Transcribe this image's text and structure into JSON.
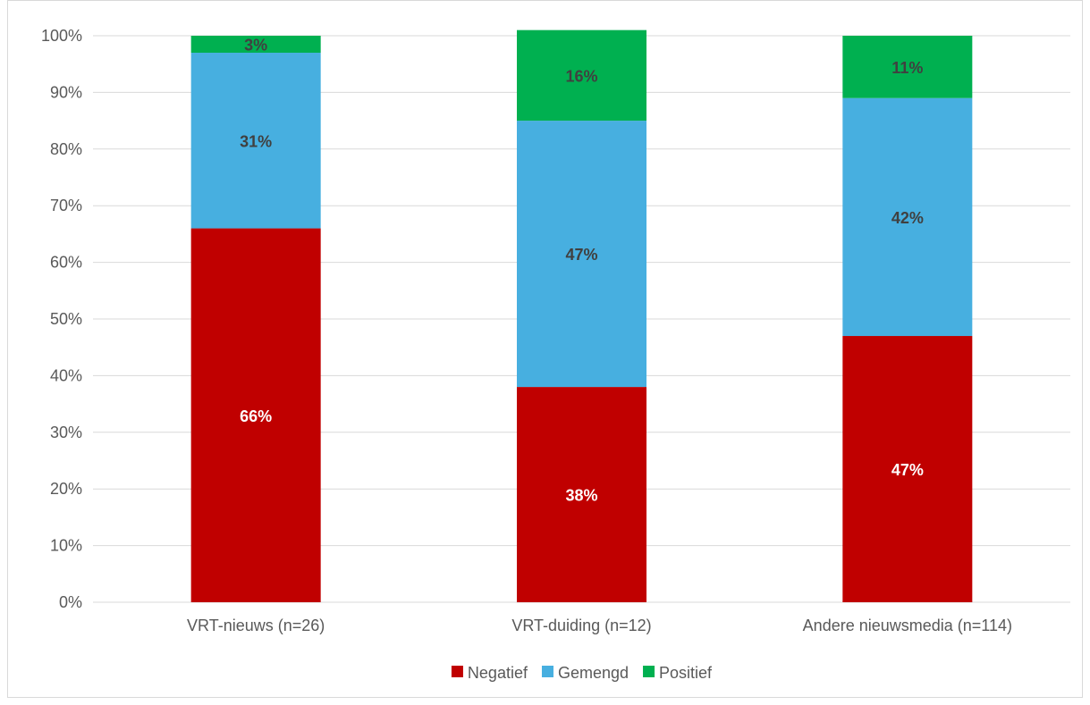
{
  "chart_data": {
    "type": "bar",
    "stacked": true,
    "title": "",
    "xlabel": "",
    "ylabel": "",
    "ylim": [
      0,
      100
    ],
    "ytick_format": "percent",
    "yticks": [
      "0%",
      "10%",
      "20%",
      "30%",
      "40%",
      "50%",
      "60%",
      "70%",
      "80%",
      "90%",
      "100%"
    ],
    "categories": [
      "VRT-nieuws (n=26)",
      "VRT-duiding (n=12)",
      "Andere nieuwsmedia (n=114)"
    ],
    "series": [
      {
        "name": "Negatief",
        "color": "#c00000",
        "label_color": "#ffffff",
        "values": [
          66,
          38,
          47
        ],
        "labels": [
          "66%",
          "38%",
          "47%"
        ]
      },
      {
        "name": "Gemengd",
        "color": "#47afe0",
        "label_color": "#404040",
        "values": [
          31,
          47,
          42
        ],
        "labels": [
          "31%",
          "47%",
          "42%"
        ]
      },
      {
        "name": "Positief",
        "color": "#00b050",
        "label_color": "#404040",
        "values": [
          3,
          16,
          11
        ],
        "labels": [
          "3%",
          "16%",
          "11%"
        ]
      }
    ],
    "grid": true,
    "legend_position": "bottom"
  }
}
